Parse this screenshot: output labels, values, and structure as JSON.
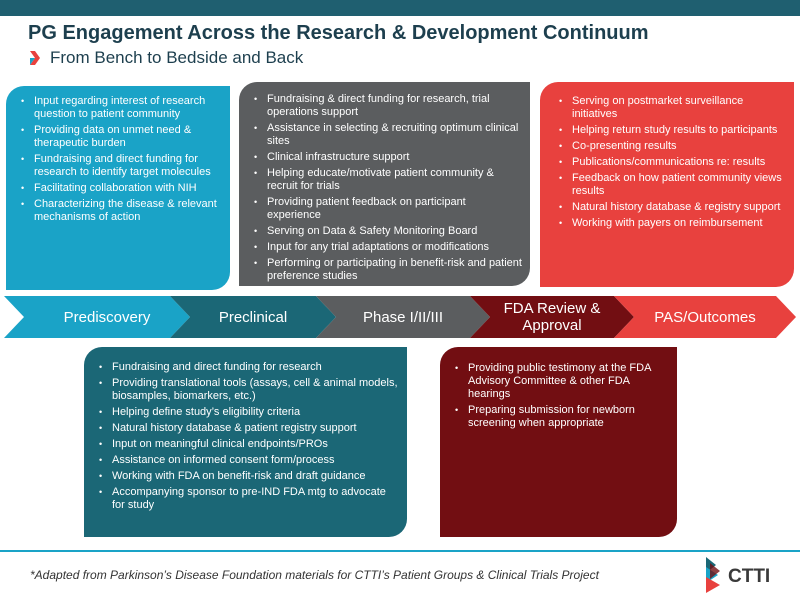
{
  "title": "PG Engagement Across the Research & Development Continuum",
  "subtitle": "From Bench to Bedside and Back",
  "colors": {
    "header_bar": "#1f5f70",
    "prediscovery": "#1aa3c7",
    "preclinical": "#1b6776",
    "phase": "#5b5d5f",
    "fda": "#720e12",
    "pas": "#e8413e"
  },
  "stages": [
    {
      "label": "Prediscovery"
    },
    {
      "label": "Preclinical"
    },
    {
      "label": "Phase I/II/III"
    },
    {
      "label": "FDA Review & Approval"
    },
    {
      "label": "PAS/Outcomes"
    }
  ],
  "boxes": {
    "prediscovery": [
      "Input regarding interest of research question to patient community",
      "Providing data on unmet need & therapeutic burden",
      "Fundraising and direct funding for research to identify target molecules",
      "Facilitating collaboration with NIH",
      "Characterizing the disease & relevant mechanisms of action"
    ],
    "phase": [
      "Fundraising & direct funding for research, trial operations support",
      "Assistance in selecting & recruiting optimum clinical sites",
      "Clinical infrastructure support",
      "Helping educate/motivate patient community & recruit for trials",
      "Providing patient feedback on participant experience",
      "Serving on Data & Safety Monitoring Board",
      "Input for any trial adaptations or modifications",
      "Performing or participating in benefit-risk and patient preference studies"
    ],
    "pas": [
      "Serving on postmarket surveillance initiatives",
      "Helping return study results to participants",
      "Co-presenting results",
      "Publications/communications re: results",
      "Feedback on how patient community views results",
      "Natural history database & registry support",
      "Working with payers on reimbursement"
    ],
    "preclinical": [
      "Fundraising and direct funding for research",
      "Providing translational tools (assays, cell & animal models, biosamples, biomarkers, etc.)",
      "Helping define study’s eligibility criteria",
      "Natural history database & patient registry support",
      "Input on meaningful clinical endpoints/PROs",
      "Assistance on informed consent form/process",
      "Working with FDA on benefit-risk and draft guidance",
      "Accompanying sponsor to pre-IND FDA mtg to advocate for study"
    ],
    "fda": [
      "Providing public testimony at the FDA Advisory Committee & other FDA hearings",
      "Preparing submission for newborn screening when appropriate"
    ]
  },
  "footnote": "*Adapted from Parkinson’s Disease Foundation materials for CTTI’s Patient Groups & Clinical Trials Project",
  "logo": {
    "text": "CTTI"
  }
}
